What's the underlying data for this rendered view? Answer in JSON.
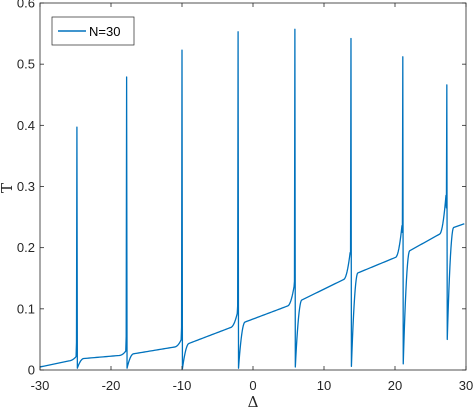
{
  "chart_data": {
    "type": "line",
    "title": "",
    "xlabel": "Δ",
    "ylabel": "T",
    "xlim": [
      -30,
      30
    ],
    "ylim": [
      0,
      0.6
    ],
    "xticks": [
      -30,
      -20,
      -10,
      0,
      10,
      20,
      30
    ],
    "yticks": [
      0,
      0.1,
      0.2,
      0.3,
      0.4,
      0.5,
      0.6
    ],
    "xtick_labels": [
      "-30",
      "-20",
      "-10",
      "0",
      "10",
      "20",
      "30"
    ],
    "ytick_labels": [
      "0",
      "0.1",
      "0.2",
      "0.3",
      "0.4",
      "0.5",
      "0.6"
    ],
    "grid": false,
    "legend_position": "top-left",
    "series": [
      {
        "name": "N=30",
        "color": "#0072BD",
        "baseline": [
          [
            -30,
            0.005
          ],
          [
            -24.6,
            0.018
          ],
          [
            -17.6,
            0.025
          ],
          [
            -9.8,
            0.04
          ],
          [
            -1.9,
            0.075
          ],
          [
            6.1,
            0.11
          ],
          [
            14.0,
            0.155
          ],
          [
            21.3,
            0.19
          ],
          [
            27.5,
            0.23
          ],
          [
            30,
            0.24
          ]
        ],
        "resonances": [
          {
            "x": -24.8,
            "peak": 0.397,
            "high": 0.015,
            "low": 0.003,
            "base": 0.018
          },
          {
            "x": -17.8,
            "peak": 0.479,
            "high": 0.025,
            "low": 0.003,
            "base": 0.025
          },
          {
            "x": -10.0,
            "peak": 0.523,
            "high": 0.04,
            "low": 0.002,
            "base": 0.04
          },
          {
            "x": -2.1,
            "peak": 0.553,
            "high": 0.075,
            "low": 0.003,
            "base": 0.075
          },
          {
            "x": 5.9,
            "peak": 0.557,
            "high": 0.115,
            "low": 0.005,
            "base": 0.11
          },
          {
            "x": 13.8,
            "peak": 0.542,
            "high": 0.16,
            "low": 0.006,
            "base": 0.155
          },
          {
            "x": 21.1,
            "peak": 0.512,
            "high": 0.195,
            "low": 0.01,
            "base": 0.19
          },
          {
            "x": 27.3,
            "peak": 0.466,
            "high": 0.235,
            "low": 0.05,
            "base": 0.23
          }
        ]
      }
    ]
  }
}
